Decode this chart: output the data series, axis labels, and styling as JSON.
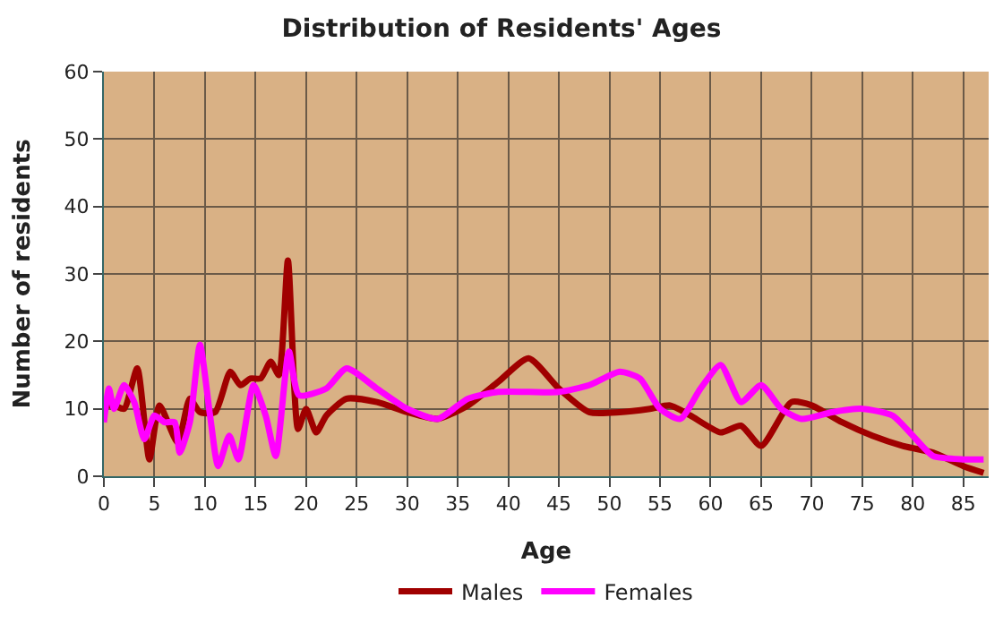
{
  "chart_data": {
    "type": "line",
    "title": "Distribution of Residents' Ages",
    "xlabel": "Age",
    "ylabel": "Number of residents",
    "xlim": [
      0,
      87.5
    ],
    "xticks": [
      0,
      5,
      10,
      15,
      20,
      25,
      30,
      35,
      40,
      45,
      50,
      55,
      60,
      65,
      70,
      75,
      80,
      85
    ],
    "ylim": [
      0,
      60
    ],
    "yticks": [
      0,
      10,
      20,
      30,
      40,
      50,
      60
    ],
    "grid": true,
    "legend": "bottom",
    "marker": "none",
    "line_style": "solid",
    "series": [
      {
        "name": "Males",
        "color": "#a00000",
        "x": [
          0,
          1,
          2,
          3.3,
          4.5,
          5.5,
          7.3,
          8.5,
          9.5,
          11,
          12.5,
          13.5,
          14.5,
          15.5,
          16.5,
          17.3,
          18.2,
          19.2,
          20,
          21,
          22,
          24,
          27,
          30,
          33,
          36,
          39,
          42,
          45,
          48,
          51,
          54,
          56,
          58,
          61,
          63,
          65,
          68,
          70,
          73,
          76,
          79,
          82,
          85,
          87
        ],
        "values": [
          10.5,
          10.5,
          10,
          16,
          2.5,
          10.5,
          5,
          11.5,
          9.5,
          9.5,
          15.5,
          13.5,
          14.5,
          14.5,
          17,
          15,
          32,
          7,
          10,
          6.5,
          9,
          11.5,
          11,
          9.5,
          8.5,
          10.5,
          14,
          17.5,
          13,
          9.5,
          9.5,
          10,
          10.5,
          9,
          6.5,
          7.5,
          4.5,
          11,
          10.5,
          8,
          6,
          4.5,
          3.5,
          1.5,
          0.5
        ]
      },
      {
        "name": "Females",
        "color": "#ff00ff",
        "x": [
          0,
          0.5,
          1,
          2,
          3,
          4,
          5,
          6,
          7,
          7.5,
          8.5,
          9.5,
          10.5,
          11.3,
          12.4,
          13.3,
          14.8,
          16,
          17,
          18.3,
          19.3,
          22,
          24,
          27,
          30,
          33,
          36,
          39,
          42,
          45,
          48,
          51,
          53,
          55,
          57,
          59,
          61,
          63,
          65,
          67,
          69,
          72,
          75,
          78,
          80,
          82,
          85,
          87
        ],
        "values": [
          8,
          13,
          10,
          13.5,
          11,
          5.5,
          9,
          8,
          8,
          3.5,
          8,
          19.5,
          9,
          1.5,
          6,
          2.5,
          13.5,
          9,
          3,
          18.5,
          12,
          13,
          16,
          13,
          10,
          8.5,
          11.5,
          12.5,
          12.5,
          12.5,
          13.5,
          15.5,
          14.5,
          10,
          8.5,
          13,
          16.5,
          11,
          13.5,
          10,
          8.5,
          9.5,
          10,
          9,
          6,
          3,
          2.5,
          2.5
        ]
      }
    ]
  }
}
